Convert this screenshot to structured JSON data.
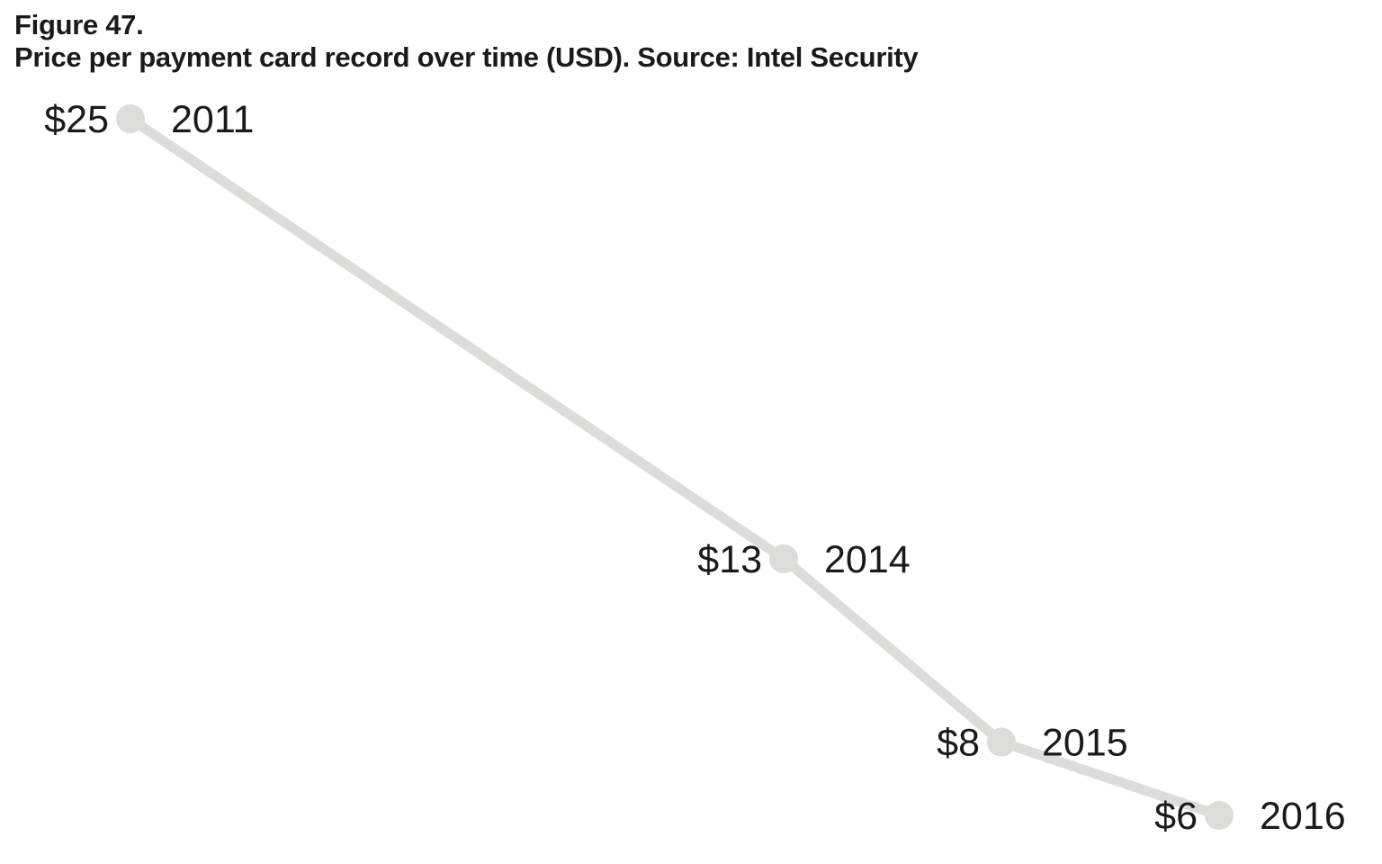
{
  "figure": {
    "number": "Figure 47.",
    "title": "Price per payment card record over time (USD). Source: Intel Security"
  },
  "chart_data": {
    "type": "line",
    "title": "Price per payment card record over time (USD). Source: Intel Security",
    "x": [
      2011,
      2014,
      2015,
      2016
    ],
    "series": [
      {
        "values": [
          25,
          13,
          8,
          6
        ],
        "value_labels": [
          "$25",
          "$13",
          "$8",
          "$6"
        ],
        "year_labels": [
          "2011",
          "2014",
          "2015",
          "2016"
        ]
      }
    ],
    "xlim": [
      2011,
      2016
    ],
    "ylim": [
      6,
      25
    ],
    "grid": false,
    "axes_visible": false,
    "colors": {
      "line": "#dcdcdb",
      "marker": "#dcdcdb",
      "text": "#1a1a1a"
    }
  }
}
